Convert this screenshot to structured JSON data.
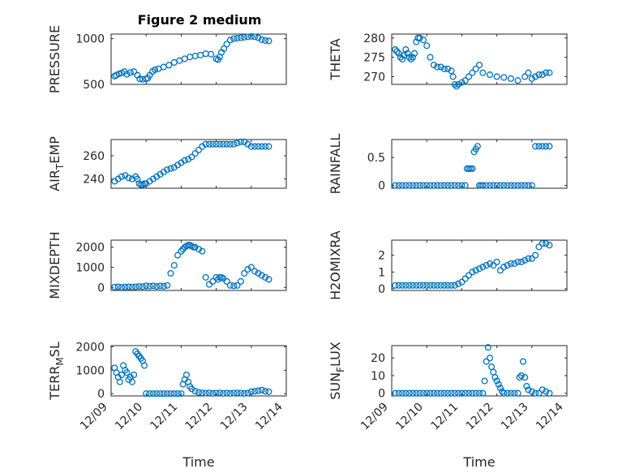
{
  "figure": {
    "title": "Figure 2 medium",
    "marker_color": "#0072BD",
    "marker": "circle"
  },
  "chart_data": [
    {
      "type": "scatter",
      "id": "pressure",
      "ylabel": "PRESSURE",
      "ylabel_sub": "",
      "ylabel_tail": "",
      "ylim": [
        500,
        1050
      ],
      "yticks": [
        500,
        1000
      ],
      "ytick_labels": [
        "500",
        "1000"
      ],
      "xlim": [
        0,
        5
      ],
      "xticks": [
        0,
        1,
        2,
        3,
        4,
        5
      ],
      "xtick_labels": [],
      "xlabel": "",
      "grid": true,
      "series": [
        {
          "x": [
            0.1,
            0.15,
            0.22,
            0.3,
            0.38,
            0.45,
            0.55,
            0.65,
            0.75,
            0.82,
            0.9,
            1.0,
            1.05,
            1.1,
            1.18,
            1.25,
            1.35,
            1.5,
            1.65,
            1.8,
            1.95,
            2.1,
            2.25,
            2.4,
            2.55,
            2.7,
            2.85,
            3.0,
            3.05,
            3.1,
            3.15,
            3.22,
            3.3,
            3.4,
            3.5,
            3.6,
            3.7,
            3.8,
            3.9,
            4.0,
            4.1,
            4.2,
            4.3,
            4.4,
            4.5
          ],
          "y": [
            590,
            600,
            615,
            625,
            640,
            610,
            630,
            640,
            600,
            560,
            555,
            560,
            570,
            600,
            640,
            660,
            670,
            690,
            710,
            740,
            760,
            780,
            800,
            810,
            820,
            835,
            830,
            780,
            770,
            800,
            850,
            890,
            940,
            985,
            1000,
            1005,
            1010,
            1015,
            1020,
            1025,
            1020,
            1010,
            990,
            980,
            975
          ]
        }
      ]
    },
    {
      "type": "scatter",
      "id": "theta",
      "ylabel": "THETA",
      "ylabel_sub": "",
      "ylabel_tail": "",
      "ylim": [
        268,
        281
      ],
      "yticks": [
        270,
        275,
        280
      ],
      "ytick_labels": [
        "270",
        "275",
        "280"
      ],
      "xlim": [
        0,
        5
      ],
      "xticks": [
        0,
        1,
        2,
        3,
        4,
        5
      ],
      "xtick_labels": [],
      "xlabel": "",
      "grid": true,
      "series": [
        {
          "x": [
            0.1,
            0.15,
            0.2,
            0.25,
            0.3,
            0.35,
            0.4,
            0.45,
            0.5,
            0.55,
            0.6,
            0.65,
            0.7,
            0.75,
            0.8,
            0.9,
            1.0,
            1.1,
            1.2,
            1.3,
            1.4,
            1.5,
            1.6,
            1.7,
            1.75,
            1.8,
            1.85,
            1.9,
            2.0,
            2.1,
            2.2,
            2.3,
            2.4,
            2.5,
            2.6,
            2.8,
            3.0,
            3.2,
            3.4,
            3.6,
            3.8,
            3.9,
            4.0,
            4.1,
            4.2,
            4.3,
            4.4,
            4.5
          ],
          "y": [
            277,
            276.5,
            276,
            275,
            274.5,
            275.5,
            277,
            276,
            275,
            274.5,
            275,
            276,
            279,
            280,
            280,
            279.5,
            278,
            275,
            273,
            272.5,
            272.5,
            272,
            272,
            271.5,
            270,
            268,
            267.5,
            268,
            268.5,
            269,
            270,
            271,
            272,
            273,
            271,
            270.5,
            270,
            269.8,
            269.5,
            269,
            270,
            271,
            269.5,
            270,
            270.5,
            270.5,
            271,
            271
          ]
        }
      ]
    },
    {
      "type": "scatter",
      "id": "air_temp",
      "ylabel": "AIR",
      "ylabel_sub": "T",
      "ylabel_tail": "EMP",
      "ylim": [
        232,
        274
      ],
      "yticks": [
        240,
        260
      ],
      "ytick_labels": [
        "240",
        "260"
      ],
      "xlim": [
        0,
        5
      ],
      "xticks": [
        0,
        1,
        2,
        3,
        4,
        5
      ],
      "xtick_labels": [],
      "xlabel": "",
      "grid": true,
      "series": [
        {
          "x": [
            0.1,
            0.2,
            0.3,
            0.4,
            0.5,
            0.6,
            0.7,
            0.75,
            0.8,
            0.85,
            0.9,
            0.95,
            1.0,
            1.1,
            1.2,
            1.3,
            1.4,
            1.5,
            1.6,
            1.7,
            1.8,
            1.9,
            2.0,
            2.1,
            2.2,
            2.3,
            2.4,
            2.5,
            2.6,
            2.7,
            2.8,
            2.9,
            3.0,
            3.1,
            3.2,
            3.3,
            3.4,
            3.5,
            3.6,
            3.7,
            3.8,
            3.9,
            4.0,
            4.1,
            4.2,
            4.3,
            4.4,
            4.5
          ],
          "y": [
            238,
            240,
            242,
            243,
            241,
            240,
            242,
            240,
            236,
            235,
            235,
            236,
            236,
            238,
            240,
            242,
            244,
            246,
            248,
            249,
            250,
            252,
            254,
            256,
            257,
            259,
            262,
            265,
            268,
            270,
            270,
            270,
            270,
            270,
            270,
            270,
            270,
            270,
            271,
            272,
            272,
            270,
            268,
            268,
            268,
            268,
            268,
            268
          ]
        }
      ]
    },
    {
      "type": "scatter",
      "id": "rainfall",
      "ylabel": "RAINFALL",
      "ylabel_sub": "",
      "ylabel_tail": "",
      "ylim": [
        -0.05,
        0.82
      ],
      "yticks": [
        0,
        0.5
      ],
      "ytick_labels": [
        "0",
        "0.5"
      ],
      "xlim": [
        0,
        5
      ],
      "xticks": [
        0,
        1,
        2,
        3,
        4,
        5
      ],
      "xtick_labels": [],
      "xlabel": "",
      "grid": true,
      "series": [
        {
          "x": [
            0.1,
            0.2,
            0.3,
            0.4,
            0.5,
            0.6,
            0.7,
            0.8,
            0.9,
            1.0,
            1.1,
            1.2,
            1.3,
            1.4,
            1.5,
            1.6,
            1.7,
            1.8,
            1.9,
            2.0,
            2.1,
            2.15,
            2.2,
            2.25,
            2.3,
            2.35,
            2.4,
            2.45,
            2.5,
            2.55,
            2.6,
            2.7,
            2.8,
            2.9,
            3.0,
            3.1,
            3.2,
            3.3,
            3.4,
            3.5,
            3.6,
            3.7,
            3.8,
            3.9,
            4.0,
            4.1,
            4.2,
            4.3,
            4.4,
            4.5
          ],
          "y": [
            0,
            0,
            0,
            0,
            0,
            0,
            0,
            0,
            0,
            0,
            0,
            0,
            0,
            0,
            0,
            0,
            0,
            0,
            0,
            0,
            0,
            0.3,
            0.3,
            0.3,
            0.3,
            0.6,
            0.65,
            0.7,
            0,
            0,
            0,
            0,
            0,
            0,
            0,
            0,
            0,
            0,
            0,
            0,
            0,
            0,
            0,
            0,
            0,
            0.7,
            0.7,
            0.7,
            0.7,
            0.7
          ]
        }
      ]
    },
    {
      "type": "scatter",
      "id": "mixdepth",
      "ylabel": "MIXDEPTH",
      "ylabel_sub": "",
      "ylabel_tail": "",
      "ylim": [
        -150,
        2350
      ],
      "yticks": [
        0,
        1000,
        2000
      ],
      "ytick_labels": [
        "0",
        "1000",
        "2000"
      ],
      "xlim": [
        0,
        5
      ],
      "xticks": [
        0,
        1,
        2,
        3,
        4,
        5
      ],
      "xtick_labels": [],
      "xlabel": "",
      "grid": true,
      "series": [
        {
          "x": [
            0.1,
            0.2,
            0.3,
            0.4,
            0.5,
            0.6,
            0.7,
            0.8,
            0.9,
            1.0,
            1.1,
            1.2,
            1.3,
            1.4,
            1.5,
            1.6,
            1.7,
            1.8,
            1.9,
            2.0,
            2.05,
            2.1,
            2.15,
            2.2,
            2.25,
            2.3,
            2.35,
            2.4,
            2.5,
            2.6,
            2.7,
            2.8,
            2.9,
            3.0,
            3.05,
            3.1,
            3.15,
            3.2,
            3.3,
            3.4,
            3.5,
            3.6,
            3.7,
            3.8,
            3.9,
            4.0,
            4.1,
            4.2,
            4.3,
            4.4,
            4.5
          ],
          "y": [
            20,
            30,
            10,
            20,
            30,
            20,
            30,
            50,
            40,
            80,
            60,
            80,
            50,
            70,
            60,
            100,
            700,
            1100,
            1600,
            1800,
            1900,
            2000,
            2050,
            2100,
            2100,
            2050,
            2000,
            2000,
            1900,
            1800,
            500,
            150,
            300,
            500,
            400,
            500,
            500,
            450,
            300,
            100,
            80,
            100,
            300,
            700,
            900,
            1000,
            800,
            700,
            600,
            500,
            400
          ]
        }
      ]
    },
    {
      "type": "scatter",
      "id": "h2omixra",
      "ylabel": "H2OMIXRA",
      "ylabel_sub": "",
      "ylabel_tail": "",
      "ylim": [
        -0.1,
        2.9
      ],
      "yticks": [
        0,
        1,
        2
      ],
      "ytick_labels": [
        "0",
        "1",
        "2"
      ],
      "xlim": [
        0,
        5
      ],
      "xticks": [
        0,
        1,
        2,
        3,
        4,
        5
      ],
      "xtick_labels": [],
      "xlabel": "",
      "grid": true,
      "series": [
        {
          "x": [
            0.1,
            0.2,
            0.3,
            0.4,
            0.5,
            0.6,
            0.7,
            0.8,
            0.9,
            1.0,
            1.1,
            1.2,
            1.3,
            1.4,
            1.5,
            1.6,
            1.7,
            1.8,
            1.9,
            2.0,
            2.1,
            2.2,
            2.3,
            2.4,
            2.5,
            2.6,
            2.7,
            2.8,
            2.9,
            3.0,
            3.1,
            3.2,
            3.3,
            3.4,
            3.5,
            3.6,
            3.7,
            3.8,
            3.9,
            4.0,
            4.1,
            4.2,
            4.3,
            4.4,
            4.5
          ],
          "y": [
            0.2,
            0.2,
            0.2,
            0.2,
            0.2,
            0.2,
            0.2,
            0.2,
            0.2,
            0.2,
            0.2,
            0.2,
            0.2,
            0.2,
            0.2,
            0.2,
            0.2,
            0.2,
            0.3,
            0.4,
            0.6,
            0.8,
            1.0,
            1.1,
            1.2,
            1.3,
            1.4,
            1.5,
            1.4,
            1.6,
            1.1,
            1.3,
            1.4,
            1.5,
            1.5,
            1.6,
            1.6,
            1.7,
            1.8,
            1.8,
            2.0,
            2.5,
            2.7,
            2.7,
            2.6
          ]
        }
      ]
    },
    {
      "type": "scatter",
      "id": "terr_msl",
      "ylabel": "TERR",
      "ylabel_sub": "M",
      "ylabel_tail": "SL",
      "ylim": [
        -100,
        2050
      ],
      "yticks": [
        0,
        1000,
        2000
      ],
      "ytick_labels": [
        "0",
        "1000",
        "2000"
      ],
      "xlim": [
        0,
        5
      ],
      "xticks": [
        0,
        1,
        2,
        3,
        4,
        5
      ],
      "xtick_labels": [
        "12/09",
        "12/10",
        "12/11",
        "12/12",
        "12/13",
        "12/14"
      ],
      "xlabel": "Time",
      "grid": true,
      "series": [
        {
          "x": [
            0.1,
            0.15,
            0.2,
            0.25,
            0.3,
            0.35,
            0.4,
            0.45,
            0.5,
            0.55,
            0.6,
            0.65,
            0.7,
            0.75,
            0.8,
            0.85,
            0.9,
            0.95,
            1.0,
            1.1,
            1.2,
            1.3,
            1.4,
            1.5,
            1.6,
            1.7,
            1.8,
            1.9,
            2.0,
            2.05,
            2.1,
            2.15,
            2.2,
            2.25,
            2.3,
            2.4,
            2.5,
            2.6,
            2.7,
            2.8,
            2.9,
            3.0,
            3.1,
            3.2,
            3.3,
            3.4,
            3.5,
            3.6,
            3.7,
            3.8,
            3.9,
            4.0,
            4.1,
            4.2,
            4.3,
            4.4,
            4.5
          ],
          "y": [
            1100,
            900,
            700,
            500,
            800,
            1200,
            1000,
            900,
            600,
            700,
            500,
            800,
            1800,
            1700,
            1600,
            1500,
            1400,
            1200,
            0,
            0,
            0,
            0,
            0,
            0,
            0,
            0,
            0,
            0,
            0,
            400,
            600,
            800,
            500,
            300,
            200,
            100,
            50,
            30,
            20,
            30,
            10,
            20,
            30,
            10,
            20,
            10,
            20,
            30,
            20,
            10,
            20,
            80,
            100,
            120,
            150,
            100,
            80
          ]
        }
      ]
    },
    {
      "type": "scatter",
      "id": "sun_flux",
      "ylabel": "SUN",
      "ylabel_sub": "F",
      "ylabel_tail": "LUX",
      "ylim": [
        -1.5,
        27
      ],
      "yticks": [
        0,
        10,
        20
      ],
      "ytick_labels": [
        "0",
        "10",
        "20"
      ],
      "xlim": [
        0,
        5
      ],
      "xticks": [
        0,
        1,
        2,
        3,
        4,
        5
      ],
      "xtick_labels": [
        "12/09",
        "12/10",
        "12/11",
        "12/12",
        "12/13",
        "12/14"
      ],
      "xlabel": "Time",
      "grid": true,
      "series": [
        {
          "x": [
            0.1,
            0.2,
            0.3,
            0.4,
            0.5,
            0.6,
            0.7,
            0.8,
            0.9,
            1.0,
            1.1,
            1.2,
            1.3,
            1.4,
            1.5,
            1.6,
            1.7,
            1.8,
            1.9,
            2.0,
            2.1,
            2.2,
            2.3,
            2.4,
            2.5,
            2.6,
            2.65,
            2.7,
            2.75,
            2.8,
            2.85,
            2.9,
            2.95,
            3.0,
            3.05,
            3.1,
            3.15,
            3.2,
            3.3,
            3.4,
            3.5,
            3.6,
            3.65,
            3.7,
            3.75,
            3.8,
            3.85,
            3.9,
            4.0,
            4.1,
            4.2,
            4.3,
            4.4,
            4.5
          ],
          "y": [
            0,
            0,
            0,
            0,
            0,
            0,
            0,
            0,
            0,
            0,
            0,
            0,
            0,
            0,
            0,
            0,
            0,
            0,
            0,
            0,
            0,
            0,
            0,
            0,
            0,
            0,
            7,
            18,
            26,
            20,
            15,
            12,
            9,
            7,
            5,
            3,
            1,
            0,
            0,
            0,
            0,
            0,
            9,
            10,
            18,
            9,
            4,
            2,
            1,
            0,
            0,
            2,
            1,
            0
          ]
        }
      ]
    }
  ]
}
